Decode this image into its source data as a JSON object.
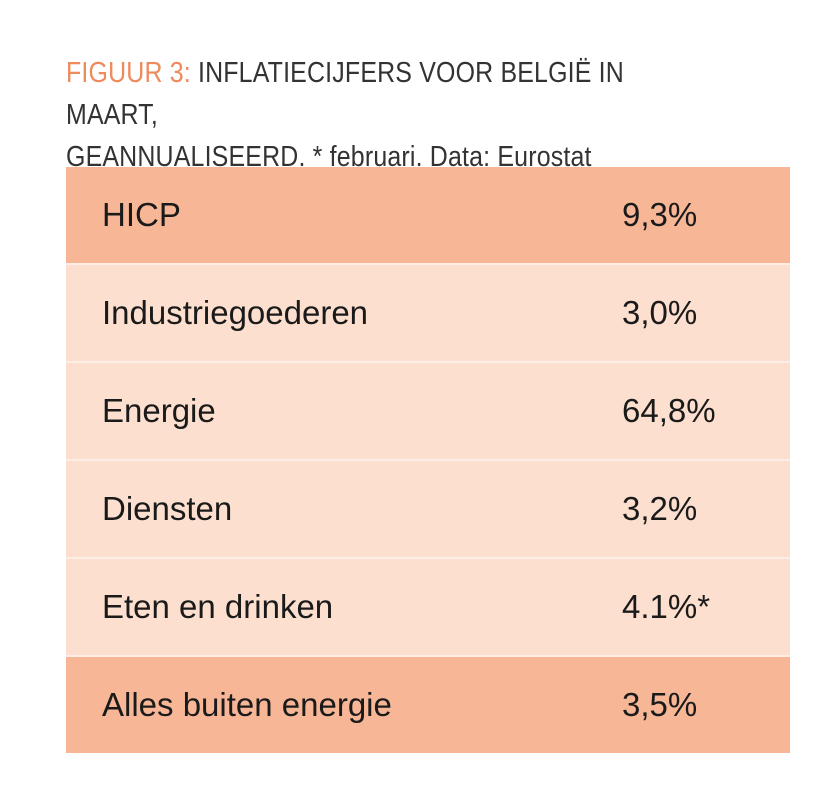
{
  "caption": {
    "label": "FIGUUR 3:",
    "line1": "INFLATIECIJFERS VOOR BELGIË IN MAART,",
    "line2": "GEANNUALISEERD. * februari. Data: Eurostat"
  },
  "colors": {
    "accent": "#ee8a5c",
    "row_highlight": "#f7b797",
    "row_normal": "#fcdfce"
  },
  "chart_data": {
    "type": "table",
    "title": "FIGUUR 3: INFLATIECIJFERS VOOR BELGIË IN MAART, GEANNUALISEERD. * februari. Data: Eurostat",
    "rows": [
      {
        "name": "HICP",
        "value": "9,3%",
        "highlight": true
      },
      {
        "name": "Industriegoederen",
        "value": "3,0%",
        "highlight": false
      },
      {
        "name": "Energie",
        "value": "64,8%",
        "highlight": false
      },
      {
        "name": "Diensten",
        "value": "3,2%",
        "highlight": false
      },
      {
        "name": "Eten en drinken",
        "value": "4.1%*",
        "highlight": false
      },
      {
        "name": "Alles buiten energie",
        "value": "3,5%",
        "highlight": true
      }
    ]
  }
}
